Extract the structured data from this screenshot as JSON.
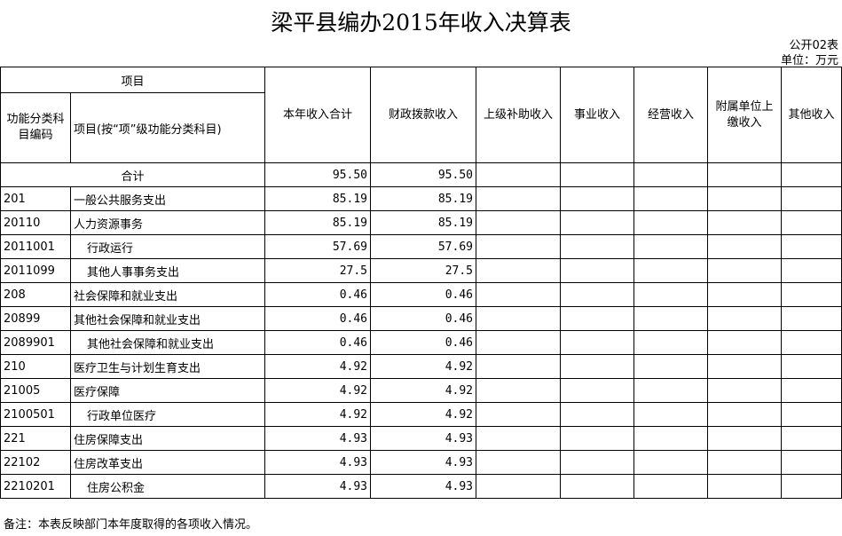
{
  "title": "梁平县编办2015年收入决算表",
  "form_no": "公开02表",
  "unit": "单位：万元",
  "header": {
    "group": "项目",
    "code": "功能分类科目编码",
    "name": "项目(按“项”级功能分类科目)",
    "cols": [
      "本年收入合计",
      "财政拨款收入",
      "上级补助收入",
      "事业收入",
      "经营收入",
      "附属单位上缴收入",
      "其他收入"
    ]
  },
  "total": {
    "label": "合计",
    "sum": "95.50",
    "fiscal": "95.50"
  },
  "rows": [
    {
      "code": "201",
      "name": "一般公共服务支出",
      "sum": "85.19",
      "fiscal": "85.19",
      "indent": false
    },
    {
      "code": "20110",
      "name": "人力资源事务",
      "sum": "85.19",
      "fiscal": "85.19",
      "indent": false
    },
    {
      "code": "2011001",
      "name": "行政运行",
      "sum": "57.69",
      "fiscal": "57.69",
      "indent": true
    },
    {
      "code": "2011099",
      "name": "其他人事事务支出",
      "sum": "27.5",
      "fiscal": "27.5",
      "indent": true
    },
    {
      "code": "208",
      "name": "社会保障和就业支出",
      "sum": "0.46",
      "fiscal": "0.46",
      "indent": false
    },
    {
      "code": "20899",
      "name": "其他社会保障和就业支出",
      "sum": "0.46",
      "fiscal": "0.46",
      "indent": false
    },
    {
      "code": "2089901",
      "name": "其他社会保障和就业支出",
      "sum": "0.46",
      "fiscal": "0.46",
      "indent": true
    },
    {
      "code": "210",
      "name": "医疗卫生与计划生育支出",
      "sum": "4.92",
      "fiscal": "4.92",
      "indent": false
    },
    {
      "code": "21005",
      "name": "医疗保障",
      "sum": "4.92",
      "fiscal": "4.92",
      "indent": false
    },
    {
      "code": "2100501",
      "name": "行政单位医疗",
      "sum": "4.92",
      "fiscal": "4.92",
      "indent": true
    },
    {
      "code": "221",
      "name": "住房保障支出",
      "sum": "4.93",
      "fiscal": "4.93",
      "indent": false
    },
    {
      "code": "22102",
      "name": "住房改革支出",
      "sum": "4.93",
      "fiscal": "4.93",
      "indent": false
    },
    {
      "code": "2210201",
      "name": "住房公积金",
      "sum": "4.93",
      "fiscal": "4.93",
      "indent": true
    }
  ],
  "note": "备注：本表反映部门本年度取得的各项收入情况。"
}
